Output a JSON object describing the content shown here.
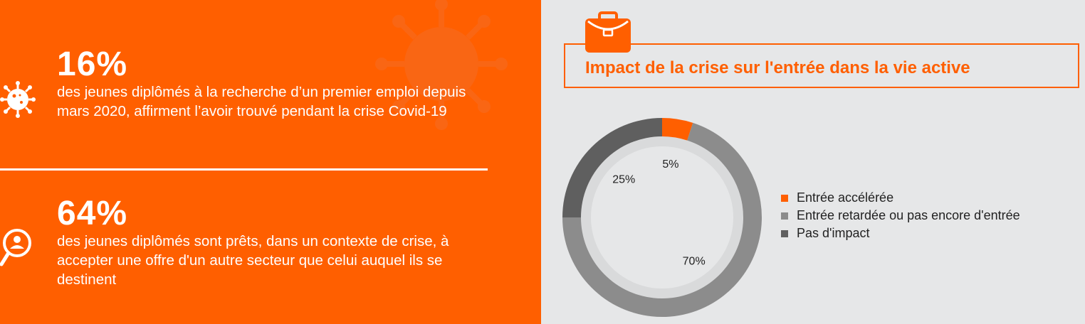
{
  "left": {
    "stat1": {
      "value": "16%",
      "text": "des jeunes diplômés à la recherche d’un premier emploi depuis mars 2020, affirment l’avoir trouvé pendant la crise Covid-19"
    },
    "stat2": {
      "value": "64%",
      "text": "des jeunes diplômés sont prêts, dans un contexte de crise, à accepter une offre d'un autre secteur que celui auquel ils se destinent"
    }
  },
  "colors": {
    "orange": "#ff5f00",
    "light_gray": "#8c8c8c",
    "dark_gray": "#5f5f5f"
  },
  "chart_data": {
    "type": "pie",
    "title": "Impact de la crise sur l'entrée dans la vie active",
    "series": [
      {
        "name": "Entrée accélérée",
        "value": 5,
        "label": "5%",
        "color": "#ff5f00"
      },
      {
        "name": "Entrée retardée ou pas encore d'entrée",
        "value": 70,
        "label": "70%",
        "color": "#8c8c8c"
      },
      {
        "name": "Pas d'impact",
        "value": 25,
        "label": "25%",
        "color": "#5f5f5f"
      }
    ],
    "legend_position": "right"
  }
}
